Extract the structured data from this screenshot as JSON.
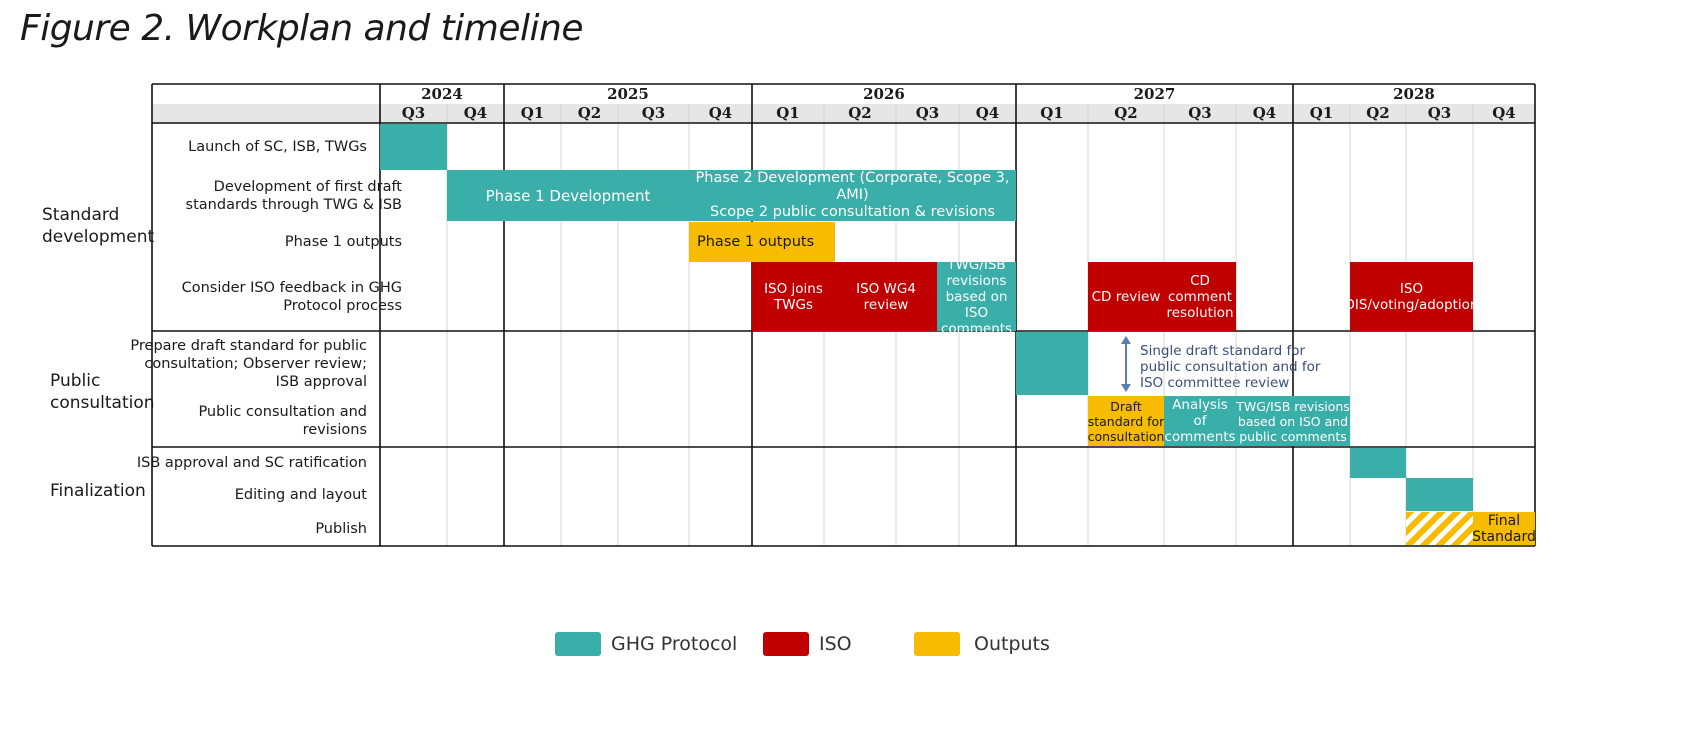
{
  "title": "Figure 2. Workplan and timeline",
  "years": [
    "2024",
    "2025",
    "2026",
    "2027",
    "2028"
  ],
  "quarters": [
    "Q3",
    "Q4",
    "Q1",
    "Q2",
    "Q3",
    "Q4",
    "Q1",
    "Q2",
    "Q3",
    "Q4",
    "Q1",
    "Q2",
    "Q3",
    "Q4",
    "Q1",
    "Q2",
    "Q3",
    "Q4"
  ],
  "sections": {
    "standard_development": "Standard development",
    "public_consultation": "Public consultation",
    "finalization": "Finalization"
  },
  "rows": {
    "launch": "Launch of SC, ISB, TWGs",
    "development": "Development of first draft standards through TWG & ISB",
    "phase1_outputs": "Phase 1 outputs",
    "iso_feedback": "Consider ISO feedback in GHG Protocol process",
    "prepare_draft": "Prepare draft standard for public consultation; Observer review; ISB approval",
    "public_consultation": "Public consultation and revisions",
    "isb_approval": "ISB approval and SC ratification",
    "editing": "Editing and layout",
    "publish": "Publish"
  },
  "bars": {
    "phase1_development": "Phase 1 Development",
    "phase2_line1": "Phase 2 Development (Corporate, Scope 3, AMI)",
    "phase2_line2": "Scope 2 public consultation & revisions",
    "phase1_outputs": "Phase 1 outputs",
    "iso_joins": "ISO joins TWGs",
    "iso_wg4": "ISO WG4 review",
    "twg_isb_revisions_iso": "TWG/ISB revisions based on ISO comments",
    "cd_review": "CD review",
    "cd_comment": "CD comment resolution",
    "iso_dis": "ISO DIS/voting/adoption",
    "draft_standard": "Draft standard for consultation",
    "analysis_comments": "Analysis of comments",
    "twg_isb_revisions_public": "TWG/ISB revisions based on ISO and public comments",
    "final_standard": "Final Standard"
  },
  "annotation": "Single draft standard for public consultation and for ISO committee review",
  "legend": {
    "ghg": "GHG Protocol",
    "iso": "ISO",
    "outputs": "Outputs"
  },
  "colors": {
    "ghg": "#3aafa9",
    "iso": "#c00000",
    "outputs": "#f7bb00"
  }
}
